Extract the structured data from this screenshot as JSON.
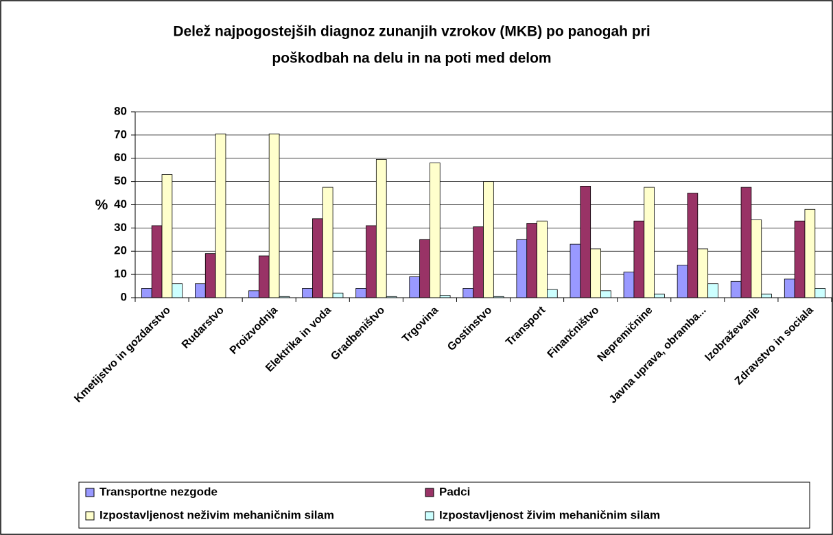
{
  "chart_data": {
    "type": "bar",
    "title": [
      "Delež najpogostejših diagnoz zunanjih vzrokov (MKB) po panogah pri",
      "poškodbah na delu in na poti med delom"
    ],
    "y_label": "%",
    "categories": [
      "Kmetijstvo in gozdarstvo",
      "Rudarstvo",
      "Proizvodnja",
      "Elektrika in voda",
      "Gradbeništvo",
      "Trgovina",
      "Gostinstvo",
      "Transport",
      "Finančništvo",
      "Nepremičnine",
      "Javna uprava, obramba...",
      "Izobraževanje",
      "Zdravstvo in sociala"
    ],
    "series": [
      {
        "name": "Transportne nezgode",
        "color": "#9999ff",
        "values": [
          4,
          6,
          3,
          4,
          4,
          9,
          4,
          25,
          23,
          11,
          14,
          7,
          8
        ]
      },
      {
        "name": "Padci",
        "color": "#993366",
        "values": [
          31,
          19,
          18,
          34,
          31,
          25,
          30.5,
          32,
          48,
          33,
          45,
          47.5,
          33
        ]
      },
      {
        "name": "Izpostavljenost neživim mehaničnim silam",
        "color": "#ffffcc",
        "values": [
          53,
          70.5,
          70.5,
          47.5,
          59.5,
          58,
          50,
          33,
          21,
          47.5,
          21,
          33.5,
          38
        ]
      },
      {
        "name": "Izpostavljenost živim mehaničnim silam",
        "color": "#ccffff",
        "values": [
          6,
          0,
          0.5,
          2,
          0.5,
          1,
          0.5,
          3.5,
          3,
          1.5,
          6,
          1.5,
          4
        ]
      }
    ],
    "ylim": [
      0,
      80
    ],
    "yticks": [
      0,
      10,
      20,
      30,
      40,
      50,
      60,
      70,
      80
    ],
    "grid": true
  }
}
